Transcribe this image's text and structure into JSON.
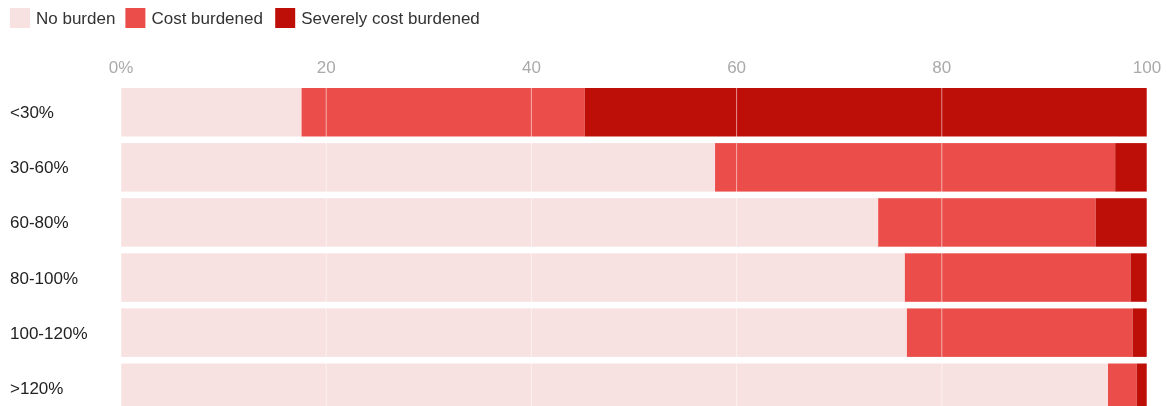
{
  "chart_data": {
    "type": "bar",
    "orientation": "horizontal",
    "stacked": true,
    "categories": [
      "<30%",
      "30-60%",
      "60-80%",
      "80-100%",
      "100-120%",
      ">120%"
    ],
    "series": [
      {
        "name": "No burden",
        "color": "#f8e1e1",
        "values": [
          17.6,
          57.9,
          73.8,
          76.4,
          76.6,
          96.2
        ]
      },
      {
        "name": "Cost burdened",
        "color": "#ea4d4a",
        "values": [
          27.6,
          39.0,
          21.2,
          22.0,
          22.0,
          2.8
        ]
      },
      {
        "name": "Severely cost burdened",
        "color": "#be0e08",
        "values": [
          54.8,
          3.1,
          5.0,
          1.6,
          1.4,
          1.0
        ]
      }
    ],
    "xlim": [
      0,
      100
    ],
    "xticks": [
      {
        "value": 0,
        "label": "0%"
      },
      20,
      40,
      60,
      80,
      100
    ],
    "grid": "x",
    "legend": "top left"
  }
}
